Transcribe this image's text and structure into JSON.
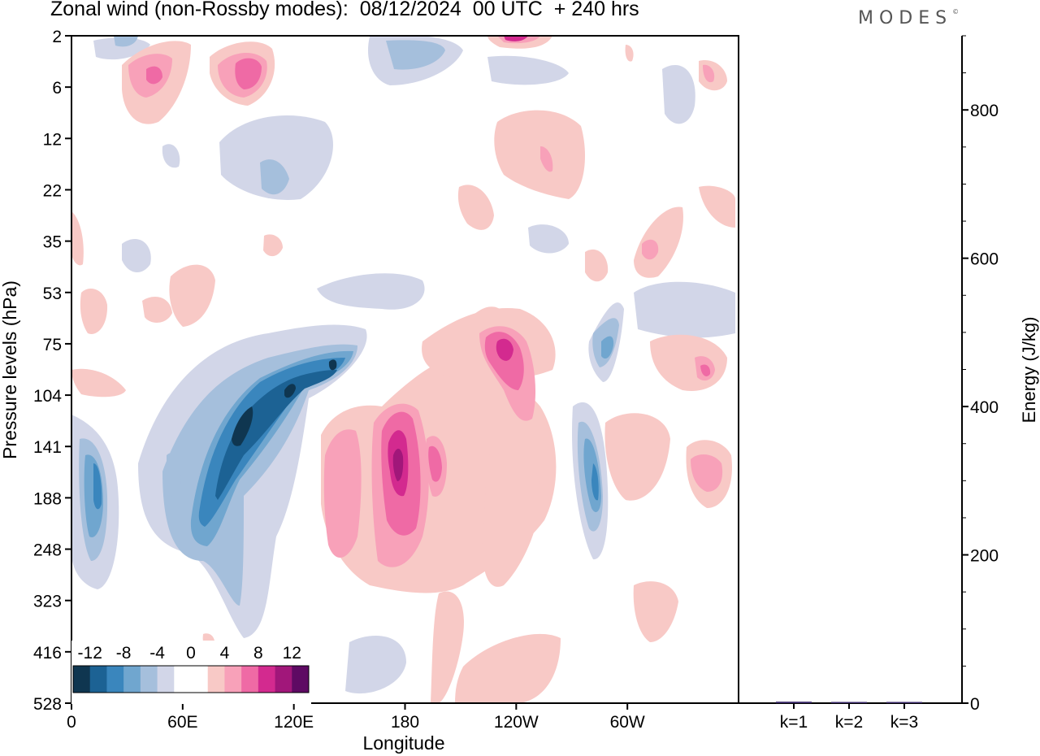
{
  "title": "Zonal wind (non-Rossby modes):  08/12/2024  00 UTC  + 240 hrs",
  "brand": "MODES",
  "chart_data": [
    {
      "type": "heatmap",
      "xlabel": "Longitude",
      "ylabel": "Pressure levels (hPa)",
      "x_ticks": [
        "0",
        "60E",
        "120E",
        "180",
        "120W",
        "60W"
      ],
      "y_ticks": [
        "2",
        "6",
        "12",
        "22",
        "35",
        "53",
        "75",
        "104",
        "141",
        "188",
        "248",
        "323",
        "416",
        "528"
      ],
      "colorbar": {
        "labels": [
          "-12",
          "-8",
          "-4",
          "0",
          "4",
          "8",
          "12"
        ],
        "colors": [
          "#0f3650",
          "#1c6294",
          "#3a86bd",
          "#70a6cf",
          "#a5bfdc",
          "#d2d6e8",
          "#ffffff",
          "#ffffff",
          "#f8c9c6",
          "#f8a1b9",
          "#ef6aa5",
          "#d32a8f",
          "#a1177a",
          "#5e0a63"
        ]
      },
      "features": [
        {
          "level": -10,
          "lon": [
            70,
            125
          ],
          "p": [
            75,
            188
          ],
          "note": "tilted easterly band"
        },
        {
          "level": -6,
          "lon": [
            5,
            25
          ],
          "p": [
            120,
            248
          ]
        },
        {
          "level": -6,
          "lon": [
            275,
            290
          ],
          "p": [
            130,
            200
          ]
        },
        {
          "level": -4,
          "lon": [
            280,
            290
          ],
          "p": [
            60,
            100
          ]
        },
        {
          "level": 10,
          "lon": [
            170,
            190
          ],
          "p": [
            120,
            200
          ]
        },
        {
          "level": 8,
          "lon": [
            225,
            240
          ],
          "p": [
            70,
            110
          ]
        },
        {
          "level": 6,
          "lon": [
            75,
            110
          ],
          "p": [
            2,
            10
          ]
        },
        {
          "level": 6,
          "lon": [
            335,
            355
          ],
          "p": [
            120,
            188
          ]
        }
      ]
    },
    {
      "type": "bar",
      "categories": [
        "k=1",
        "k=2",
        "k=3"
      ],
      "values": [
        2,
        1,
        1
      ],
      "ylabel": "Energy (J/kg)",
      "ylim": [
        0,
        900
      ],
      "y_ticks": [
        0,
        200,
        400,
        600,
        800
      ]
    }
  ]
}
